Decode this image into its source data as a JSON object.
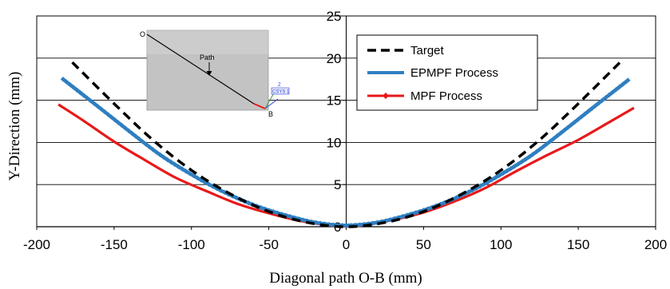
{
  "chart_data": {
    "type": "line",
    "xlabel": "Diagonal path O-B (mm)",
    "ylabel": "Y-Direction (mm)",
    "xlim": [
      -200,
      200
    ],
    "ylim": [
      0,
      25
    ],
    "x_ticks": [
      "-200",
      "-150",
      "-100",
      "-50",
      "0",
      "50",
      "100",
      "150",
      "200"
    ],
    "y_ticks": [
      "0",
      "5",
      "10",
      "15",
      "20",
      "25"
    ],
    "grid": "horizontal",
    "legend_position": "top-right",
    "series": [
      {
        "name": "Target",
        "color": "#000000",
        "style": "dashed",
        "x": [
          -177,
          -150,
          -125,
          -100,
          -75,
          -50,
          -25,
          0,
          25,
          50,
          75,
          100,
          125,
          150,
          177
        ],
        "y": [
          19.5,
          14.6,
          10.3,
          6.7,
          3.9,
          1.8,
          0.5,
          0.0,
          0.5,
          1.8,
          3.9,
          6.7,
          10.3,
          14.6,
          19.5
        ]
      },
      {
        "name": "EPMPF Process",
        "color": "#2f7fc1",
        "style": "solid-markers",
        "x": [
          -183,
          -160,
          -140,
          -120,
          -100,
          -80,
          -60,
          -40,
          -20,
          0,
          20,
          40,
          60,
          80,
          100,
          120,
          140,
          160,
          183
        ],
        "y": [
          17.5,
          14.2,
          11.3,
          8.5,
          6.2,
          4.2,
          2.6,
          1.4,
          0.5,
          0.15,
          0.5,
          1.4,
          2.6,
          4.2,
          6.2,
          8.5,
          11.3,
          14.2,
          17.5
        ]
      },
      {
        "name": "MPF Process",
        "color": "#e8191a",
        "style": "solid",
        "x": [
          -186,
          -170,
          -150,
          -130,
          -110,
          -90,
          -70,
          -50,
          -30,
          -10,
          0,
          10,
          30,
          50,
          70,
          90,
          110,
          130,
          150,
          170,
          186
        ],
        "y": [
          14.5,
          12.6,
          10.1,
          7.9,
          5.8,
          4.2,
          2.7,
          1.6,
          0.7,
          0.15,
          0.05,
          0.15,
          0.8,
          1.7,
          3.0,
          4.6,
          6.6,
          8.5,
          10.3,
          12.4,
          14.1
        ]
      }
    ],
    "inset": {
      "label_o": "O",
      "label_b": "B",
      "path_label": "Path",
      "axis_label": "Z",
      "csys_label": "CSYS 1"
    }
  }
}
